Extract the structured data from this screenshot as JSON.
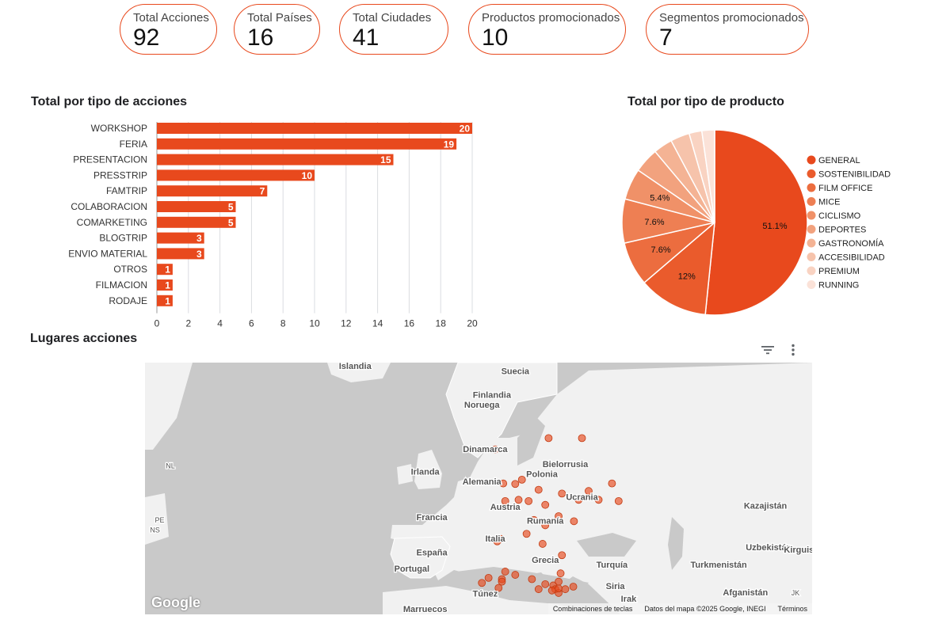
{
  "kpis": [
    {
      "label": "Total Acciones",
      "value": "92"
    },
    {
      "label": "Total Países",
      "value": "16"
    },
    {
      "label": "Total Ciudades",
      "value": "41"
    },
    {
      "label": "Productos promocionados",
      "value": "10"
    },
    {
      "label": "Segmentos promocionados",
      "value": "7"
    }
  ],
  "colors": {
    "accent": "#e8491d",
    "kpi_border": "#e8491d"
  },
  "chart_data": [
    {
      "type": "bar",
      "title": "Total por tipo de acciones",
      "orientation": "horizontal",
      "categories": [
        "WORKSHOP",
        "FERIA",
        "PRESENTACION",
        "PRESSTRIP",
        "FAMTRIP",
        "COLABORACION",
        "COMARKETING",
        "BLOGTRIP",
        "ENVIO MATERIAL",
        "OTROS",
        "FILMACION",
        "RODAJE"
      ],
      "values": [
        20,
        19,
        15,
        10,
        7,
        5,
        5,
        3,
        3,
        1,
        1,
        1
      ],
      "xlim": [
        0,
        20
      ],
      "xticks": [
        "0",
        "2",
        "4",
        "6",
        "8",
        "10",
        "12",
        "14",
        "16",
        "18",
        "20"
      ],
      "grid": true,
      "color": "#e8491d"
    },
    {
      "type": "pie",
      "title": "Total por tipo de producto",
      "legend_position": "right",
      "labels": [
        "GENERAL",
        "SOSTENIBILIDAD",
        "FILM OFFICE",
        "MICE",
        "CICLISMO",
        "DEPORTES",
        "GASTRONOMÍA",
        "ACCESIBILIDAD",
        "PREMIUM",
        "RUNNING"
      ],
      "values": [
        51.1,
        12,
        7.6,
        7.6,
        5.4,
        4.3,
        3.3,
        3.3,
        2.2,
        2.2
      ],
      "slice_labels": [
        "51.1%",
        "12%",
        "7.6%",
        "7.6%",
        "5.4%",
        "",
        "",
        "",
        "",
        ""
      ],
      "colors": [
        "#e8491d",
        "#ea5b2c",
        "#ec6d3f",
        "#ee7f53",
        "#f09168",
        "#f2a27e",
        "#f4b394",
        "#f6c3ab",
        "#f9d3c2",
        "#fbe2d8"
      ]
    }
  ],
  "map": {
    "title": "Lugares acciones",
    "labels": [
      "Islandia",
      "Suecia",
      "Finlandia",
      "Noruega",
      "Dinamarca",
      "Bielorrusia",
      "Irlanda",
      "Alemania",
      "Polonia",
      "Ucrania",
      "Francia",
      "Austria",
      "Rumanía",
      "Kazajistán",
      "Italia",
      "España",
      "Uzbekistán",
      "Kirguistán",
      "Portugal",
      "Grecia",
      "Turquía",
      "Turkmenistán",
      "Siria",
      "Túnez",
      "Irak",
      "Afganistán",
      "Marruecos",
      "NL",
      "PE",
      "NS",
      "JK"
    ],
    "footer": {
      "shortcuts": "Combinaciones de teclas",
      "data": "Datos del mapa ©2025 Google, INEGI",
      "terms": "Términos"
    },
    "logo": "Google",
    "markers": [
      [
        0.605,
        0.3
      ],
      [
        0.655,
        0.3
      ],
      [
        0.525,
        0.345
      ],
      [
        0.565,
        0.465
      ],
      [
        0.54,
        0.55
      ],
      [
        0.56,
        0.545
      ],
      [
        0.575,
        0.55
      ],
      [
        0.6,
        0.565
      ],
      [
        0.625,
        0.52
      ],
      [
        0.665,
        0.51
      ],
      [
        0.59,
        0.505
      ],
      [
        0.7,
        0.48
      ],
      [
        0.555,
        0.482
      ],
      [
        0.537,
        0.48
      ],
      [
        0.65,
        0.545
      ],
      [
        0.68,
        0.545
      ],
      [
        0.71,
        0.55
      ],
      [
        0.62,
        0.61
      ],
      [
        0.583,
        0.625
      ],
      [
        0.6,
        0.646
      ],
      [
        0.643,
        0.63
      ],
      [
        0.528,
        0.71
      ],
      [
        0.533,
        0.7
      ],
      [
        0.572,
        0.68
      ],
      [
        0.596,
        0.72
      ],
      [
        0.625,
        0.765
      ],
      [
        0.54,
        0.83
      ],
      [
        0.555,
        0.843
      ],
      [
        0.535,
        0.86
      ],
      [
        0.515,
        0.855
      ],
      [
        0.505,
        0.875
      ],
      [
        0.535,
        0.87
      ],
      [
        0.58,
        0.86
      ],
      [
        0.6,
        0.88
      ],
      [
        0.612,
        0.885
      ],
      [
        0.615,
        0.9
      ],
      [
        0.62,
        0.915
      ],
      [
        0.59,
        0.9
      ],
      [
        0.53,
        0.895
      ],
      [
        0.62,
        0.897
      ],
      [
        0.63,
        0.9
      ],
      [
        0.642,
        0.89
      ],
      [
        0.62,
        0.87
      ],
      [
        0.623,
        0.837
      ],
      [
        0.61,
        0.905
      ]
    ]
  }
}
